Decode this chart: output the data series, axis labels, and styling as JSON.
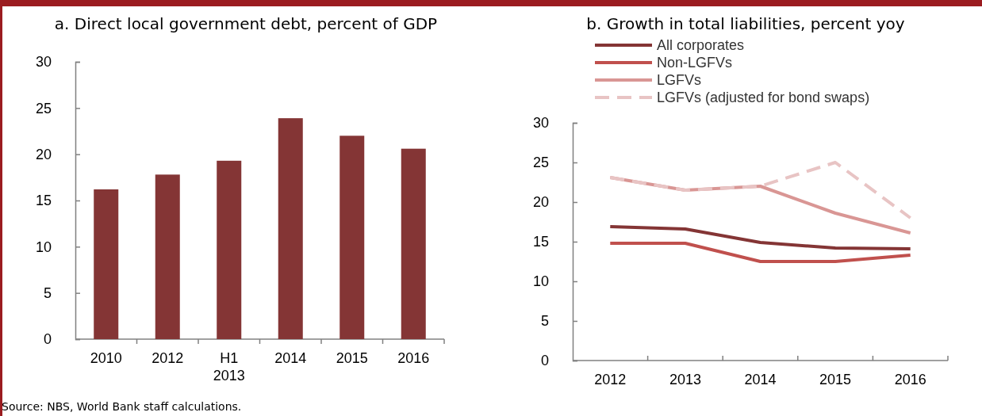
{
  "chart_data": [
    {
      "type": "bar",
      "title": "a. Direct local government debt, percent of GDP",
      "categories": [
        "2010",
        "2012",
        "H1\n2013",
        "2014",
        "2015",
        "2016"
      ],
      "values": [
        16.2,
        17.8,
        19.3,
        23.9,
        22.0,
        20.6
      ],
      "color": "#843535",
      "ylim": [
        0,
        30
      ],
      "yticks": [
        0,
        5,
        10,
        15,
        20,
        25,
        30
      ],
      "annotations": [
        "Source: NBS, World Bank staff calculations."
      ]
    },
    {
      "type": "line",
      "title": "b. Growth in total liabilities, percent yoy",
      "categories": [
        "2012",
        "2013",
        "2014",
        "2015",
        "2016"
      ],
      "ylim": [
        0,
        30
      ],
      "yticks": [
        0,
        5,
        10,
        15,
        20,
        25,
        30
      ],
      "legend": "top left",
      "series": [
        {
          "name": "All corporates",
          "color": "#843535",
          "values": [
            16.9,
            16.6,
            14.9,
            14.2,
            14.1
          ]
        },
        {
          "name": "Non-LGFVs",
          "color": "#c0504d",
          "values": [
            14.8,
            14.8,
            12.5,
            12.5,
            13.3
          ]
        },
        {
          "name": "LGFVs",
          "color": "#d99694",
          "values": [
            23.1,
            21.5,
            22.0,
            18.6,
            16.1
          ]
        },
        {
          "name": "LGFVs (adjusted for bond swaps)",
          "color": "#e8c4c4",
          "line_style": "dashed",
          "values": [
            23.1,
            21.5,
            22.0,
            25.0,
            18.0
          ]
        }
      ]
    }
  ]
}
